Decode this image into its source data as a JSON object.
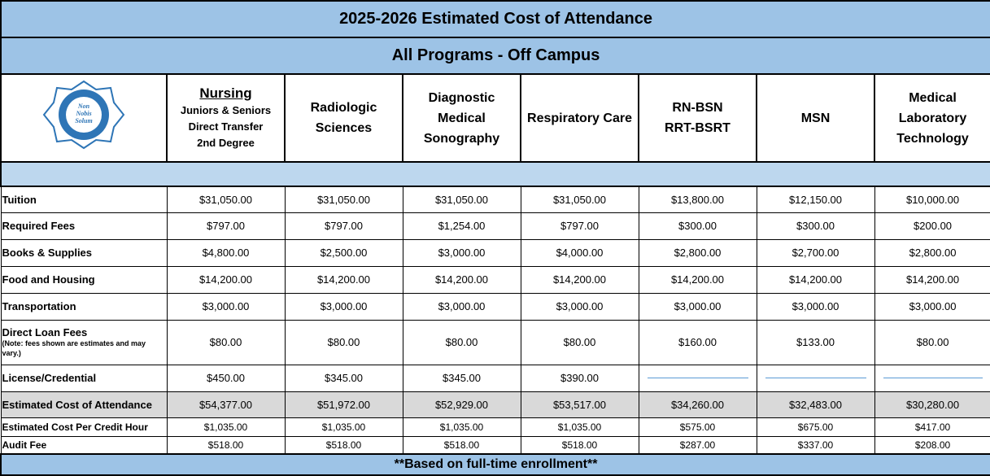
{
  "header": {
    "title": "2025-2026 Estimated Cost of Attendance",
    "subtitle": "All Programs - Off Campus"
  },
  "logo": {
    "motto": [
      "Non",
      "Nobis",
      "Solum"
    ]
  },
  "columns": [
    {
      "title": "Nursing",
      "lines": [
        "Juniors & Seniors",
        "Direct Transfer",
        "2nd Degree"
      ]
    },
    {
      "lines": [
        "Radiologic",
        "Sciences"
      ]
    },
    {
      "lines": [
        "Diagnostic",
        "Medical",
        "Sonography"
      ]
    },
    {
      "lines": [
        "Respiratory Care"
      ]
    },
    {
      "lines": [
        "RN-BSN",
        "RRT-BSRT"
      ]
    },
    {
      "lines": [
        "MSN"
      ]
    },
    {
      "lines": [
        "Medical",
        "Laboratory",
        "Technology"
      ]
    }
  ],
  "rows": [
    {
      "label": "Tuition",
      "values": [
        "$31,050.00",
        "$31,050.00",
        "$31,050.00",
        "$31,050.00",
        "$13,800.00",
        "$12,150.00",
        "$10,000.00"
      ]
    },
    {
      "label": "Required Fees",
      "values": [
        "$797.00",
        "$797.00",
        "$1,254.00",
        "$797.00",
        "$300.00",
        "$300.00",
        "$200.00"
      ]
    },
    {
      "label": "Books & Supplies",
      "values": [
        "$4,800.00",
        "$2,500.00",
        "$3,000.00",
        "$4,000.00",
        "$2,800.00",
        "$2,700.00",
        "$2,800.00"
      ]
    },
    {
      "label": "Food and Housing",
      "values": [
        "$14,200.00",
        "$14,200.00",
        "$14,200.00",
        "$14,200.00",
        "$14,200.00",
        "$14,200.00",
        "$14,200.00"
      ]
    },
    {
      "label": "Transportation",
      "values": [
        "$3,000.00",
        "$3,000.00",
        "$3,000.00",
        "$3,000.00",
        "$3,000.00",
        "$3,000.00",
        "$3,000.00"
      ]
    },
    {
      "label": "Direct Loan Fees",
      "note": "(Note: fees shown are estimates and may vary.)",
      "values": [
        "$80.00",
        "$80.00",
        "$80.00",
        "$80.00",
        "$160.00",
        "$133.00",
        "$80.00"
      ]
    },
    {
      "label": "License/Credential",
      "values": [
        "$450.00",
        "$345.00",
        "$345.00",
        "$390.00",
        null,
        null,
        null
      ]
    },
    {
      "label": "Estimated Cost of Attendance",
      "values": [
        "$54,377.00",
        "$51,972.00",
        "$52,929.00",
        "$53,517.00",
        "$34,260.00",
        "$32,483.00",
        "$30,280.00"
      ]
    },
    {
      "label": "Estimated Cost Per Credit Hour",
      "values": [
        "$1,035.00",
        "$1,035.00",
        "$1,035.00",
        "$1,035.00",
        "$575.00",
        "$675.00",
        "$417.00"
      ]
    },
    {
      "label": "Audit Fee",
      "values": [
        "$518.00",
        "$518.00",
        "$518.00",
        "$518.00",
        "$287.00",
        "$337.00",
        "$208.00"
      ]
    }
  ],
  "footer": "**Based on full-time enrollment**"
}
